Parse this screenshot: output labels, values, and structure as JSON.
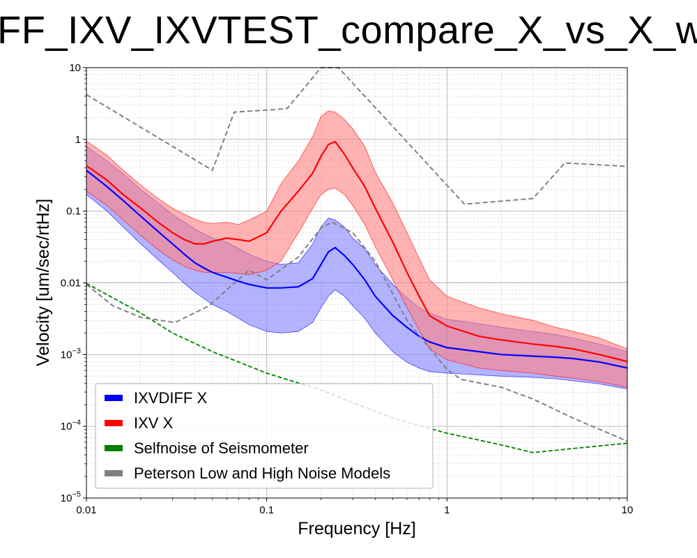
{
  "chart_data": {
    "type": "line",
    "title": "FF_IXV_IXVTEST_compare_X_vs_X_wi",
    "xlabel": "Frequency [Hz]",
    "ylabel": "Velocity [um/sec/rtHz]",
    "x_scale": "log",
    "y_scale": "log",
    "xlim": [
      0.01,
      10
    ],
    "ylim": [
      1e-05,
      10
    ],
    "grid": true,
    "legend_position": "lower-left",
    "x_ticks": [
      {
        "value": 0.01,
        "label": "0.01"
      },
      {
        "value": 0.1,
        "label": "0.1"
      },
      {
        "value": 1,
        "label": "1"
      },
      {
        "value": 10,
        "label": "10"
      }
    ],
    "y_ticks": [
      {
        "value": 1e-05,
        "base": "10",
        "exp": "−5"
      },
      {
        "value": 0.0001,
        "base": "10",
        "exp": "−4"
      },
      {
        "value": 0.001,
        "base": "10",
        "exp": "−3"
      },
      {
        "value": 0.01,
        "label": "0.01"
      },
      {
        "value": 0.1,
        "label": "0.1"
      },
      {
        "value": 1,
        "label": "1"
      },
      {
        "value": 10,
        "label": "10"
      }
    ],
    "series": [
      {
        "name": "IXVDIFF X",
        "color": "#0000ff",
        "band_color": "#8080ff",
        "x": [
          0.01,
          0.013,
          0.016,
          0.02,
          0.025,
          0.03,
          0.035,
          0.04,
          0.045,
          0.05,
          0.06,
          0.07,
          0.08,
          0.1,
          0.12,
          0.15,
          0.18,
          0.2,
          0.22,
          0.24,
          0.27,
          0.3,
          0.35,
          0.4,
          0.5,
          0.6,
          0.7,
          0.8,
          1,
          1.5,
          2,
          3,
          4,
          5,
          7,
          10
        ],
        "median": [
          0.37,
          0.22,
          0.14,
          0.085,
          0.052,
          0.035,
          0.025,
          0.019,
          0.016,
          0.014,
          0.012,
          0.0105,
          0.0095,
          0.0085,
          0.0085,
          0.0088,
          0.0115,
          0.018,
          0.027,
          0.031,
          0.024,
          0.018,
          0.011,
          0.0065,
          0.0035,
          0.0024,
          0.0018,
          0.0015,
          0.00125,
          0.0011,
          0.001,
          0.00095,
          0.00092,
          0.00088,
          0.00079,
          0.00065
        ],
        "upper": [
          0.8,
          0.5,
          0.33,
          0.2,
          0.13,
          0.09,
          0.07,
          0.056,
          0.048,
          0.042,
          0.037,
          0.03,
          0.025,
          0.02,
          0.018,
          0.019,
          0.035,
          0.06,
          0.08,
          0.075,
          0.06,
          0.042,
          0.03,
          0.018,
          0.0095,
          0.0062,
          0.0045,
          0.0038,
          0.0031,
          0.0027,
          0.0024,
          0.0021,
          0.0019,
          0.0017,
          0.0014,
          0.0011
        ],
        "lower": [
          0.17,
          0.1,
          0.06,
          0.035,
          0.021,
          0.014,
          0.0098,
          0.0074,
          0.006,
          0.005,
          0.004,
          0.0032,
          0.0026,
          0.0021,
          0.002,
          0.0021,
          0.0028,
          0.0045,
          0.0065,
          0.008,
          0.0065,
          0.0048,
          0.0032,
          0.002,
          0.0011,
          0.00078,
          0.00065,
          0.00058,
          0.00055,
          0.00052,
          0.0005,
          0.00048,
          0.00046,
          0.00043,
          0.00039,
          0.00033
        ]
      },
      {
        "name": "IXV X",
        "color": "#ff0000",
        "band_color": "#ff8080",
        "x": [
          0.01,
          0.013,
          0.016,
          0.02,
          0.025,
          0.03,
          0.035,
          0.04,
          0.045,
          0.05,
          0.06,
          0.07,
          0.08,
          0.1,
          0.12,
          0.15,
          0.18,
          0.2,
          0.22,
          0.24,
          0.27,
          0.3,
          0.35,
          0.4,
          0.5,
          0.6,
          0.7,
          0.8,
          1,
          1.5,
          2,
          3,
          4,
          5,
          7,
          10
        ],
        "median": [
          0.43,
          0.27,
          0.17,
          0.11,
          0.07,
          0.05,
          0.04,
          0.035,
          0.035,
          0.038,
          0.042,
          0.04,
          0.038,
          0.05,
          0.1,
          0.19,
          0.34,
          0.58,
          0.85,
          0.93,
          0.62,
          0.4,
          0.22,
          0.11,
          0.037,
          0.014,
          0.0065,
          0.0035,
          0.0025,
          0.0018,
          0.0016,
          0.0014,
          0.0013,
          0.0012,
          0.001,
          0.0008
        ],
        "upper": [
          0.95,
          0.6,
          0.37,
          0.23,
          0.15,
          0.11,
          0.09,
          0.077,
          0.07,
          0.067,
          0.07,
          0.065,
          0.075,
          0.1,
          0.24,
          0.5,
          1.1,
          2.1,
          2.5,
          2.4,
          1.9,
          1.4,
          0.8,
          0.35,
          0.13,
          0.05,
          0.022,
          0.011,
          0.0065,
          0.0045,
          0.0037,
          0.003,
          0.0024,
          0.0021,
          0.0017,
          0.0012
        ],
        "lower": [
          0.19,
          0.12,
          0.075,
          0.046,
          0.029,
          0.021,
          0.017,
          0.015,
          0.014,
          0.014,
          0.014,
          0.0135,
          0.013,
          0.015,
          0.02,
          0.05,
          0.11,
          0.17,
          0.2,
          0.21,
          0.17,
          0.12,
          0.065,
          0.032,
          0.011,
          0.0045,
          0.0022,
          0.0012,
          0.00085,
          0.00065,
          0.0006,
          0.00055,
          0.0005,
          0.00047,
          0.00042,
          0.00035
        ]
      },
      {
        "name": "Selfnoise of Seismometer",
        "color": "#008000",
        "style": "dashed",
        "x": [
          0.01,
          0.02,
          0.03,
          0.05,
          0.1,
          0.2,
          0.5,
          1,
          2,
          3,
          5,
          10
        ],
        "y": [
          0.0098,
          0.0038,
          0.002,
          0.0011,
          0.00055,
          0.00032,
          0.00013,
          8e-05,
          5.5e-05,
          4.3e-05,
          4.9e-05,
          5.8e-05
        ]
      },
      {
        "name": "Peterson Low and High Noise Models",
        "color": "#808080",
        "style": "dashed",
        "curves": [
          {
            "x": [
              0.01,
              0.05,
              0.066,
              0.11,
              0.13,
              0.2,
              0.25,
              1.25,
              3,
              4.5,
              10
            ],
            "y": [
              4.2,
              0.37,
              2.4,
              2.6,
              2.7,
              10,
              10,
              0.125,
              0.15,
              0.47,
              0.42
            ]
          },
          {
            "x": [
              0.01,
              0.014,
              0.02,
              0.031,
              0.048,
              0.06,
              0.08,
              0.1,
              0.15,
              0.2,
              0.23,
              0.3,
              0.4,
              0.6,
              1,
              1.2,
              2,
              3,
              5,
              10
            ],
            "y": [
              0.0095,
              0.0048,
              0.0033,
              0.0028,
              0.0048,
              0.008,
              0.015,
              0.011,
              0.023,
              0.058,
              0.07,
              0.05,
              0.02,
              0.003,
              0.00062,
              0.00045,
              0.00035,
              0.00024,
              0.00013,
              6.2e-05
            ]
          }
        ]
      }
    ],
    "legend": [
      "IXVDIFF X",
      "IXV X",
      "Selfnoise of Seismometer",
      "Peterson Low and High Noise Models"
    ]
  }
}
